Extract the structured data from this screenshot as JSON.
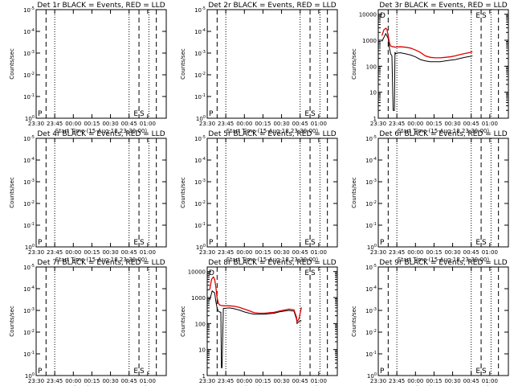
{
  "figure": {
    "xlabel": "Start Time (15-Aug-18 23:30:00)",
    "ylabel": "Counts/sec",
    "x_tick_labels": [
      "23:30",
      "23:45",
      "00:00",
      "00:15",
      "00:30",
      "00:45",
      "01:00"
    ],
    "y_tick_labels_empty": [
      "10^0",
      "10^-1",
      "10^-2",
      "10^-3",
      "10^-4",
      "10^-5"
    ],
    "y_tick_labels_data": [
      "1",
      "10",
      "100",
      "1000",
      "10000"
    ],
    "markers": {
      "e": "E",
      "s": "S",
      "d": "D",
      "p": "P"
    },
    "series_colors": {
      "events": "#000000",
      "lld": "#e00000"
    }
  },
  "chart_data": [
    {
      "type": "line",
      "title": "Det 1r BLACK = Events, RED = LLD",
      "xlabel": "Start Time (15-Aug-18 23:30:00)",
      "ylabel": "Counts/sec",
      "xlim_minutes": [
        0,
        105
      ],
      "y_scale": "log",
      "ylim": [
        1,
        100000
      ],
      "has_data": false,
      "series": []
    },
    {
      "type": "line",
      "title": "Det 2r BLACK = Events, RED = LLD",
      "xlabel": "Start Time (15-Aug-18 23:30:00)",
      "ylabel": "Counts/sec",
      "xlim_minutes": [
        0,
        105
      ],
      "y_scale": "log",
      "ylim": [
        1,
        100000
      ],
      "has_data": false,
      "series": []
    },
    {
      "type": "line",
      "title": "Det 3r BLACK = Events, RED = LLD",
      "xlabel": "Start Time (15-Aug-18 23:30:00)",
      "ylabel": "Counts/sec",
      "xlim_minutes": [
        0,
        105
      ],
      "y_scale": "log",
      "ylim": [
        1,
        15000
      ],
      "has_data": true,
      "series": [
        {
          "color": "events",
          "x": [
            3,
            6,
            8,
            9,
            10,
            11,
            12,
            13,
            13.5,
            14,
            15,
            18,
            22,
            26,
            30,
            34,
            38,
            42,
            46,
            50,
            54,
            58,
            62,
            66,
            70,
            74,
            76
          ],
          "y": [
            900,
            1800,
            1200,
            500,
            300,
            250,
            2,
            2,
            350,
            300,
            320,
            330,
            300,
            270,
            230,
            180,
            160,
            150,
            150,
            150,
            160,
            170,
            180,
            200,
            220,
            240,
            250
          ]
        },
        {
          "color": "lld",
          "x": [
            3,
            4.5,
            6,
            7,
            8,
            9,
            10,
            11,
            12,
            13,
            14,
            15,
            18,
            22,
            26,
            30,
            34,
            38,
            42,
            46,
            50,
            54,
            58,
            62,
            66,
            70,
            74,
            76
          ],
          "y": [
            1500,
            2500,
            2900,
            2600,
            1500,
            800,
            600,
            580,
            560,
            550,
            540,
            550,
            560,
            540,
            500,
            420,
            340,
            250,
            220,
            210,
            210,
            220,
            230,
            250,
            280,
            310,
            340,
            360
          ]
        }
      ]
    },
    {
      "type": "line",
      "title": "Det 4r BLACK = Events, RED = LLD",
      "xlabel": "Start Time (15-Aug-18 23:30:00)",
      "ylabel": "Counts/sec",
      "xlim_minutes": [
        0,
        105
      ],
      "y_scale": "log",
      "ylim": [
        1,
        100000
      ],
      "has_data": false,
      "series": []
    },
    {
      "type": "line",
      "title": "Det 5r BLACK = Events, RED = LLD",
      "xlabel": "Start Time (15-Aug-18 23:30:00)",
      "ylabel": "Counts/sec",
      "xlim_minutes": [
        0,
        105
      ],
      "y_scale": "log",
      "ylim": [
        1,
        100000
      ],
      "has_data": false,
      "series": []
    },
    {
      "type": "line",
      "title": "Det 6r BLACK = Events, RED = LLD",
      "xlabel": "Start Time (15-Aug-18 23:30:00)",
      "ylabel": "Counts/sec",
      "xlim_minutes": [
        0,
        105
      ],
      "y_scale": "log",
      "ylim": [
        1,
        100000
      ],
      "has_data": false,
      "series": []
    },
    {
      "type": "line",
      "title": "Det 7r BLACK = Events, RED = LLD",
      "xlabel": "Start Time (15-Aug-18 23:30:00)",
      "ylabel": "Counts/sec",
      "xlim_minutes": [
        0,
        105
      ],
      "y_scale": "log",
      "ylim": [
        1,
        100000
      ],
      "has_data": false,
      "series": []
    },
    {
      "type": "line",
      "title": "Det 8r BLACK = Events, RED = LLD",
      "xlabel": "Start Time (15-Aug-18 23:30:00)",
      "ylabel": "Counts/sec",
      "xlim_minutes": [
        0,
        105
      ],
      "y_scale": "log",
      "ylim": [
        1,
        15000
      ],
      "has_data": true,
      "series": [
        {
          "color": "events",
          "x": [
            2,
            4,
            6,
            7,
            8,
            9,
            10,
            11,
            11.5,
            12,
            13,
            15,
            18,
            22,
            26,
            30,
            34,
            38,
            42,
            46,
            50,
            54,
            58,
            62,
            66,
            70,
            72,
            72.5,
            74,
            76
          ],
          "y": [
            800,
            1800,
            1500,
            700,
            400,
            300,
            280,
            270,
            2,
            2,
            380,
            390,
            400,
            370,
            330,
            280,
            250,
            230,
            230,
            230,
            240,
            250,
            280,
            300,
            320,
            300,
            150,
            100,
            120,
            130
          ]
        },
        {
          "color": "lld",
          "x": [
            2,
            3.5,
            5,
            6,
            7,
            8,
            9,
            10,
            11,
            12,
            13,
            15,
            18,
            22,
            26,
            30,
            34,
            38,
            42,
            46,
            50,
            54,
            58,
            62,
            66,
            70,
            72,
            72.5,
            74,
            76
          ],
          "y": [
            2000,
            5000,
            6200,
            5000,
            2500,
            1000,
            600,
            520,
            500,
            490,
            480,
            480,
            480,
            460,
            420,
            360,
            310,
            260,
            250,
            250,
            260,
            270,
            300,
            330,
            360,
            340,
            180,
            120,
            150,
            420
          ]
        }
      ]
    },
    {
      "type": "line",
      "title": "Det 9r BLACK = Events, RED = LLD",
      "xlabel": "Start Time (15-Aug-18 23:30:00)",
      "ylabel": "Counts/sec",
      "xlim_minutes": [
        0,
        105
      ],
      "y_scale": "log",
      "ylim": [
        1,
        100000
      ],
      "has_data": false,
      "series": []
    }
  ]
}
